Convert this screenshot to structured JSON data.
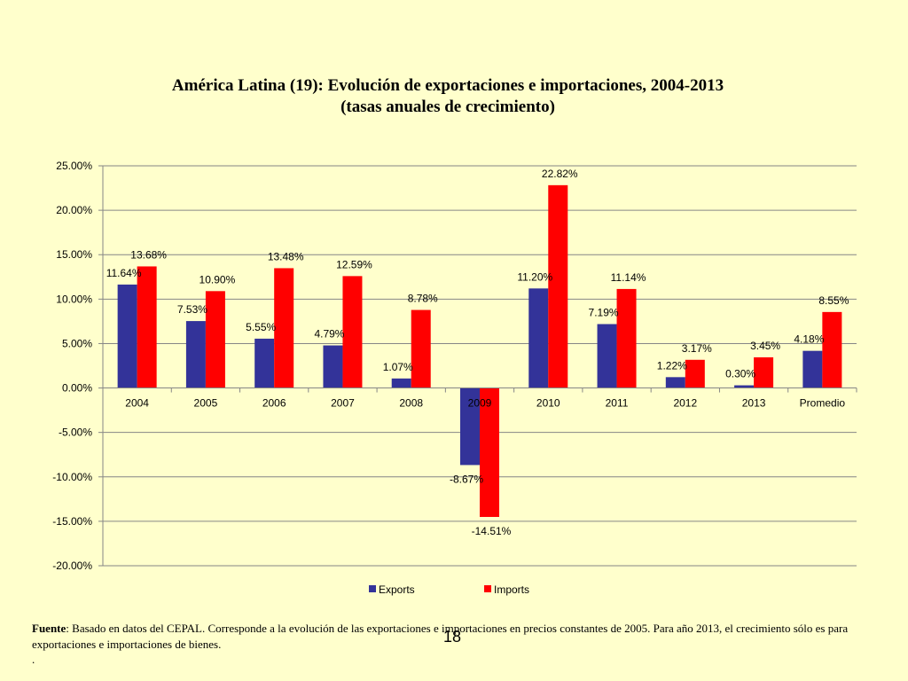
{
  "chart_data": {
    "type": "bar",
    "title": "América Latina (19): Evolución de exportaciones e importaciones, 2004-2013",
    "subtitle": "(tasas anuales de crecimiento)",
    "categories": [
      "2004",
      "2005",
      "2006",
      "2007",
      "2008",
      "2009",
      "2010",
      "2011",
      "2012",
      "2013",
      "Promedio"
    ],
    "series": [
      {
        "name": "Exports",
        "color": "#333399",
        "values": [
          11.64,
          7.53,
          5.55,
          4.79,
          1.07,
          -8.67,
          11.2,
          7.19,
          1.22,
          0.3,
          4.18
        ],
        "labels": [
          "11.64%",
          "7.53%",
          "5.55%",
          "4.79%",
          "1.07%",
          "-8.67%",
          "11.20%",
          "7.19%",
          "1.22%",
          "0.30%",
          "4.18%"
        ]
      },
      {
        "name": "Imports",
        "color": "#ff0000",
        "values": [
          13.68,
          10.9,
          13.48,
          12.59,
          8.78,
          -14.51,
          22.82,
          11.14,
          3.17,
          3.45,
          8.55
        ],
        "labels": [
          "13.68%",
          "10.90%",
          "13.48%",
          "12.59%",
          "8.78%",
          "-14.51%",
          "22.82%",
          "11.14%",
          "3.17%",
          "3.45%",
          "8.55%"
        ]
      }
    ],
    "ylim": [
      -20,
      25
    ],
    "yticks": [
      25,
      20,
      15,
      10,
      5,
      0,
      -5,
      -10,
      -15,
      -20
    ],
    "ytick_labels": [
      "25.00%",
      "20.00%",
      "15.00%",
      "10.00%",
      "5.00%",
      "0.00%",
      "-5.00%",
      "-10.00%",
      "-15.00%",
      "-20.00%"
    ],
    "grid": true,
    "legend_position": "bottom"
  },
  "footnote": {
    "label": "Fuente",
    "text": ": Basado en datos del CEPAL.  Corresponde a la evolución de las exportaciones e importaciones en precios constantes de 2005. Para año 2013, el crecimiento sólo es para exportaciones e importaciones de bienes.",
    "dot": "."
  },
  "slide_number": "18"
}
